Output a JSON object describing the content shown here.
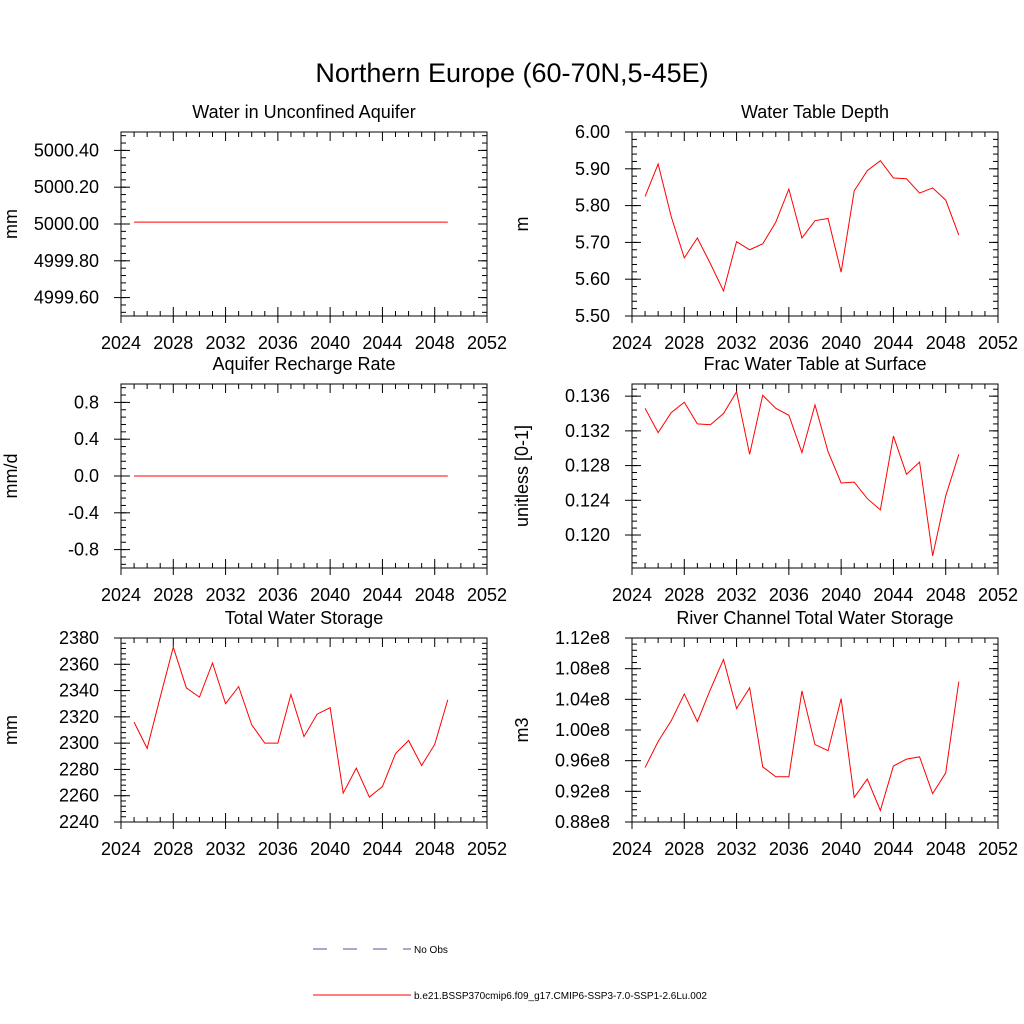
{
  "title": "Northern Europe (60-70N,5-45E)",
  "colors": {
    "model": "#ff0000",
    "obs": "#4a5a9a",
    "axis": "#000000"
  },
  "legend": {
    "obs_label": "No Obs",
    "model_label": "b.e21.BSSP370cmip6.f09_g17.CMIP6-SSP3-7.0-SSP1-2.6Lu.002"
  },
  "chart_data": [
    {
      "type": "line",
      "title": "Water in Unconfined Aquifer",
      "ylabel": "mm",
      "xlim": [
        2024,
        2052
      ],
      "ylim": [
        4999.5,
        5000.5
      ],
      "xticks": [
        2024,
        2028,
        2032,
        2036,
        2040,
        2044,
        2048,
        2052
      ],
      "yticks": [
        4999.6,
        4999.8,
        5000.0,
        5000.2,
        5000.4
      ],
      "ytick_labels": [
        "4999.60",
        "4999.80",
        "5000.00",
        "5000.20",
        "5000.40"
      ],
      "ytick_minor_step": 0.04,
      "x": [
        2025,
        2026,
        2027,
        2028,
        2029,
        2030,
        2031,
        2032,
        2033,
        2034,
        2035,
        2036,
        2037,
        2038,
        2039,
        2040,
        2041,
        2042,
        2043,
        2044,
        2045,
        2046,
        2047,
        2048,
        2049
      ],
      "series": [
        {
          "name": "b.e21.BSSP370cmip6.f09_g17.CMIP6-SSP3-7.0-SSP1-2.6Lu.002",
          "values": [
            5000.01,
            5000.01,
            5000.01,
            5000.01,
            5000.01,
            5000.01,
            5000.01,
            5000.01,
            5000.01,
            5000.01,
            5000.01,
            5000.01,
            5000.01,
            5000.01,
            5000.01,
            5000.01,
            5000.01,
            5000.01,
            5000.01,
            5000.01,
            5000.01,
            5000.01,
            5000.01,
            5000.01,
            5000.01
          ]
        }
      ]
    },
    {
      "type": "line",
      "title": "Water Table Depth",
      "ylabel": "m",
      "xlim": [
        2024,
        2052
      ],
      "ylim": [
        5.5,
        6.0
      ],
      "xticks": [
        2024,
        2028,
        2032,
        2036,
        2040,
        2044,
        2048,
        2052
      ],
      "yticks": [
        5.5,
        5.6,
        5.7,
        5.8,
        5.9,
        6.0
      ],
      "ytick_labels": [
        "5.50",
        "5.60",
        "5.70",
        "5.80",
        "5.90",
        "6.00"
      ],
      "ytick_minor_step": 0.02,
      "x": [
        2025,
        2026,
        2027,
        2028,
        2029,
        2030,
        2031,
        2032,
        2033,
        2034,
        2035,
        2036,
        2037,
        2038,
        2039,
        2040,
        2041,
        2042,
        2043,
        2044,
        2045,
        2046,
        2047,
        2048,
        2049
      ],
      "series": [
        {
          "name": "b.e21.BSSP370cmip6.f09_g17.CMIP6-SSP3-7.0-SSP1-2.6Lu.002",
          "values": [
            5.825,
            5.913,
            5.77,
            5.658,
            5.712,
            5.642,
            5.568,
            5.702,
            5.68,
            5.696,
            5.755,
            5.845,
            5.712,
            5.759,
            5.765,
            5.619,
            5.84,
            5.895,
            5.922,
            5.875,
            5.873,
            5.834,
            5.848,
            5.815,
            5.72
          ]
        }
      ]
    },
    {
      "type": "line",
      "title": "Aquifer Recharge Rate",
      "ylabel": "mm/d",
      "xlim": [
        2024,
        2052
      ],
      "ylim": [
        -1.0,
        1.0
      ],
      "xticks": [
        2024,
        2028,
        2032,
        2036,
        2040,
        2044,
        2048,
        2052
      ],
      "yticks": [
        -0.8,
        -0.4,
        0.0,
        0.4,
        0.8
      ],
      "ytick_labels": [
        "-0.8",
        "-0.4",
        "0.0",
        "0.4",
        "0.8"
      ],
      "ytick_minor_step": 0.08,
      "x": [
        2025,
        2026,
        2027,
        2028,
        2029,
        2030,
        2031,
        2032,
        2033,
        2034,
        2035,
        2036,
        2037,
        2038,
        2039,
        2040,
        2041,
        2042,
        2043,
        2044,
        2045,
        2046,
        2047,
        2048,
        2049
      ],
      "series": [
        {
          "name": "b.e21.BSSP370cmip6.f09_g17.CMIP6-SSP3-7.0-SSP1-2.6Lu.002",
          "values": [
            0,
            0,
            0,
            0,
            0,
            0,
            0,
            0,
            0,
            0,
            0,
            0,
            0,
            0,
            0,
            0,
            0,
            0,
            0,
            0,
            0,
            0,
            0,
            0,
            0
          ]
        }
      ]
    },
    {
      "type": "line",
      "title": "Frac Water Table at Surface",
      "ylabel": "unitless [0-1]",
      "xlim": [
        2024,
        2052
      ],
      "ylim": [
        0.1162,
        0.1374
      ],
      "xticks": [
        2024,
        2028,
        2032,
        2036,
        2040,
        2044,
        2048,
        2052
      ],
      "yticks": [
        0.12,
        0.124,
        0.128,
        0.132,
        0.136
      ],
      "ytick_labels": [
        "0.120",
        "0.124",
        "0.128",
        "0.132",
        "0.136"
      ],
      "ytick_minor_step": 0.0008,
      "x": [
        2025,
        2026,
        2027,
        2028,
        2029,
        2030,
        2031,
        2032,
        2033,
        2034,
        2035,
        2036,
        2037,
        2038,
        2039,
        2040,
        2041,
        2042,
        2043,
        2044,
        2045,
        2046,
        2047,
        2048,
        2049
      ],
      "series": [
        {
          "name": "b.e21.BSSP370cmip6.f09_g17.CMIP6-SSP3-7.0-SSP1-2.6Lu.002",
          "values": [
            0.1346,
            0.1318,
            0.1341,
            0.1353,
            0.1328,
            0.1327,
            0.134,
            0.1365,
            0.1293,
            0.1361,
            0.1346,
            0.1338,
            0.1295,
            0.135,
            0.1296,
            0.126,
            0.1261,
            0.1242,
            0.1229,
            0.1314,
            0.127,
            0.1284,
            0.1176,
            0.1245,
            0.1293
          ]
        }
      ]
    },
    {
      "type": "line",
      "title": "Total Water Storage",
      "ylabel": "mm",
      "xlim": [
        2024,
        2052
      ],
      "ylim": [
        2240,
        2380
      ],
      "xticks": [
        2024,
        2028,
        2032,
        2036,
        2040,
        2044,
        2048,
        2052
      ],
      "yticks": [
        2240,
        2260,
        2280,
        2300,
        2320,
        2340,
        2360,
        2380
      ],
      "ytick_labels": [
        "2240",
        "2260",
        "2280",
        "2300",
        "2320",
        "2340",
        "2360",
        "2380"
      ],
      "ytick_minor_step": 4,
      "x": [
        2025,
        2026,
        2027,
        2028,
        2029,
        2030,
        2031,
        2032,
        2033,
        2034,
        2035,
        2036,
        2037,
        2038,
        2039,
        2040,
        2041,
        2042,
        2043,
        2044,
        2045,
        2046,
        2047,
        2048,
        2049
      ],
      "series": [
        {
          "name": "b.e21.BSSP370cmip6.f09_g17.CMIP6-SSP3-7.0-SSP1-2.6Lu.002",
          "values": [
            2316,
            2296,
            2335,
            2373,
            2342,
            2335,
            2361,
            2330,
            2343,
            2314,
            2300,
            2300,
            2337,
            2305,
            2322,
            2327,
            2262,
            2281,
            2259,
            2267,
            2292,
            2302,
            2283,
            2299,
            2333
          ]
        }
      ]
    },
    {
      "type": "line",
      "title": "River Channel Total Water Storage",
      "ylabel": "m3",
      "xlim": [
        2024,
        2052
      ],
      "ylim": [
        0.88,
        1.12
      ],
      "xticks": [
        2024,
        2028,
        2032,
        2036,
        2040,
        2044,
        2048,
        2052
      ],
      "yticks": [
        0.88,
        0.92,
        0.96,
        1.0,
        1.04,
        1.08,
        1.12
      ],
      "ytick_labels": [
        "0.88e8",
        "0.92e8",
        "0.96e8",
        "1.00e8",
        "1.04e8",
        "1.08e8",
        "1.12e8"
      ],
      "ytick_minor_step": 0.008,
      "x": [
        2025,
        2026,
        2027,
        2028,
        2029,
        2030,
        2031,
        2032,
        2033,
        2034,
        2035,
        2036,
        2037,
        2038,
        2039,
        2040,
        2041,
        2042,
        2043,
        2044,
        2045,
        2046,
        2047,
        2048,
        2049
      ],
      "series": [
        {
          "name": "b.e21.BSSP370cmip6.f09_g17.CMIP6-SSP3-7.0-SSP1-2.6Lu.002",
          "values": [
            0.951,
            0.985,
            1.012,
            1.047,
            1.011,
            1.053,
            1.092,
            1.028,
            1.055,
            0.952,
            0.939,
            0.939,
            1.051,
            0.981,
            0.973,
            1.041,
            0.912,
            0.936,
            0.895,
            0.953,
            0.962,
            0.965,
            0.917,
            0.944,
            1.063
          ]
        }
      ]
    }
  ]
}
